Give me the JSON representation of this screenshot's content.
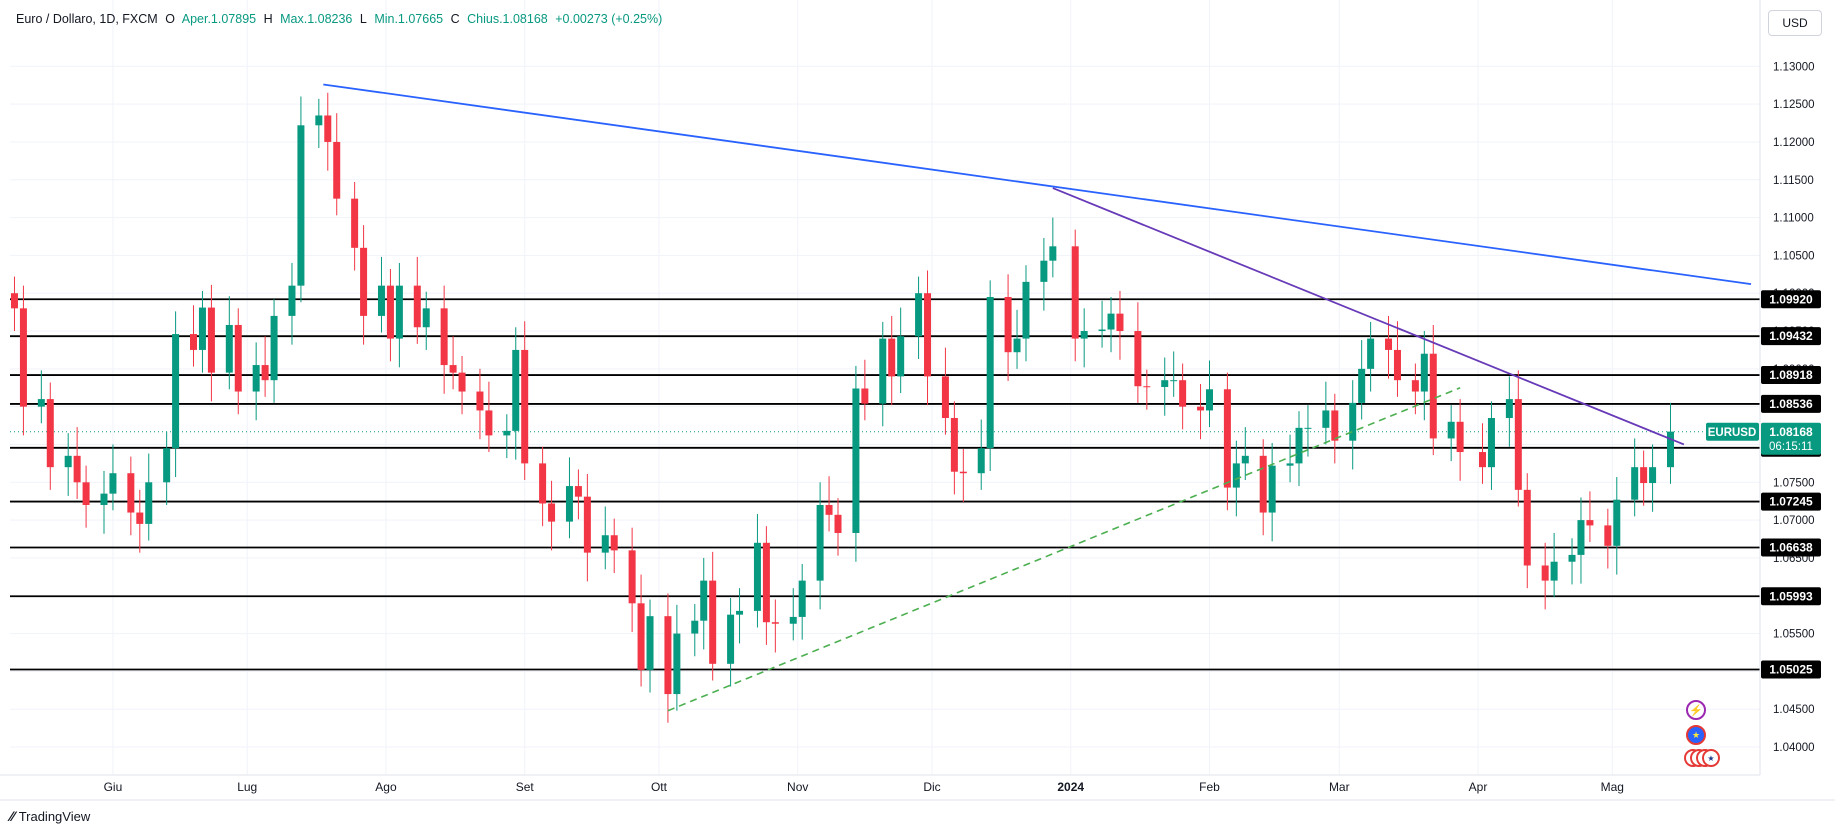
{
  "header": {
    "symbol": "Euro / Dollaro, 1D, FXCM",
    "open_label": "O",
    "open_value": "Aper.1.07895",
    "high_label": "H",
    "high_value": "Max.1.08236",
    "low_label": "L",
    "low_value": "Min.1.07665",
    "close_label": "C",
    "close_value": "Chius.1.08168",
    "change_value": "+0.00273 (+0.25%)"
  },
  "currency_button": "USD",
  "logo_text": "TradingView",
  "colors": {
    "up": "#089981",
    "down": "#f23645",
    "trend_blue": "#2962ff",
    "trend_purple": "#673ab7",
    "trend_green": "#4caf50",
    "level": "#000000"
  },
  "chart_data": {
    "type": "candlestick",
    "symbol": "EURUSD",
    "ylim": [
      1.0363,
      1.1348
    ],
    "y_ticks": [
      "1.04000",
      "1.04500",
      "1.05000",
      "1.05500",
      "1.06000",
      "1.06500",
      "1.07000",
      "1.07500",
      "1.08000",
      "1.08500",
      "1.09000",
      "1.09500",
      "1.10000",
      "1.10500",
      "1.11000",
      "1.11500",
      "1.12000",
      "1.12500",
      "1.13000"
    ],
    "x_labels": [
      "Giu",
      "Lug",
      "Ago",
      "Set",
      "Ott",
      "Nov",
      "Dic",
      "2024",
      "Feb",
      "Mar",
      "Apr",
      "Mag"
    ],
    "x_label_dates": [
      "2023-06-01",
      "2023-07-01",
      "2023-08-01",
      "2023-09-01",
      "2023-10-01",
      "2023-11-01",
      "2023-12-01",
      "2024-01-01",
      "2024-02-01",
      "2024-03-01",
      "2024-04-01",
      "2024-05-01"
    ],
    "x_range": [
      "2023-05-09",
      "2024-06-03"
    ],
    "horizontal_levels": [
      "1.09920",
      "1.09432",
      "1.08918",
      "1.08536",
      "1.07956",
      "1.07245",
      "1.06638",
      "1.05993",
      "1.05025"
    ],
    "last_price": {
      "symbol": "EURUSD",
      "value": "1.08168",
      "countdown": "06:15:11",
      "numeric": 1.08168
    },
    "trendlines": [
      {
        "style": "solid",
        "color": "blue",
        "points": [
          [
            "2023-07-18",
            1.1276
          ],
          [
            "2024-06-01",
            1.1012
          ]
        ]
      },
      {
        "style": "solid",
        "color": "purple",
        "points": [
          [
            "2023-12-28",
            1.1139
          ],
          [
            "2024-05-17",
            1.08
          ]
        ]
      },
      {
        "style": "dashed",
        "color": "green",
        "points": [
          [
            "2023-10-03",
            1.0448
          ],
          [
            "2024-03-28",
            1.0875
          ]
        ]
      }
    ],
    "closes": [
      [
        "2023-05-10",
        1.098
      ],
      [
        "2023-05-12",
        1.085
      ],
      [
        "2023-05-16",
        1.086
      ],
      [
        "2023-05-18",
        1.077
      ],
      [
        "2023-05-22",
        1.0785
      ],
      [
        "2023-05-24",
        1.075
      ],
      [
        "2023-05-26",
        1.072
      ],
      [
        "2023-05-30",
        1.0735
      ],
      [
        "2023-06-01",
        1.0762
      ],
      [
        "2023-06-05",
        1.071
      ],
      [
        "2023-06-07",
        1.0695
      ],
      [
        "2023-06-09",
        1.075
      ],
      [
        "2023-06-13",
        1.0795
      ],
      [
        "2023-06-15",
        1.0946
      ],
      [
        "2023-06-19",
        1.0925
      ],
      [
        "2023-06-21",
        1.0981
      ],
      [
        "2023-06-23",
        1.0895
      ],
      [
        "2023-06-27",
        1.0958
      ],
      [
        "2023-06-29",
        1.087
      ],
      [
        "2023-07-03",
        1.0905
      ],
      [
        "2023-07-05",
        1.0885
      ],
      [
        "2023-07-07",
        1.097
      ],
      [
        "2023-07-11",
        1.101
      ],
      [
        "2023-07-13",
        1.1222
      ],
      [
        "2023-07-17",
        1.1235
      ],
      [
        "2023-07-19",
        1.12
      ],
      [
        "2023-07-21",
        1.1125
      ],
      [
        "2023-07-25",
        1.106
      ],
      [
        "2023-07-27",
        1.097
      ],
      [
        "2023-07-31",
        1.101
      ],
      [
        "2023-08-02",
        1.094
      ],
      [
        "2023-08-04",
        1.101
      ],
      [
        "2023-08-08",
        1.0955
      ],
      [
        "2023-08-10",
        1.098
      ],
      [
        "2023-08-14",
        1.0905
      ],
      [
        "2023-08-16",
        1.0895
      ],
      [
        "2023-08-18",
        1.087
      ],
      [
        "2023-08-22",
        1.0845
      ],
      [
        "2023-08-24",
        1.0812
      ],
      [
        "2023-08-28",
        1.0818
      ],
      [
        "2023-08-30",
        1.0925
      ],
      [
        "2023-09-01",
        1.0775
      ],
      [
        "2023-09-05",
        1.0722
      ],
      [
        "2023-09-07",
        1.0698
      ],
      [
        "2023-09-11",
        1.0745
      ],
      [
        "2023-09-13",
        1.0731
      ],
      [
        "2023-09-15",
        1.0657
      ],
      [
        "2023-09-19",
        1.068
      ],
      [
        "2023-09-21",
        1.066
      ],
      [
        "2023-09-25",
        1.059
      ],
      [
        "2023-09-27",
        1.0502
      ],
      [
        "2023-09-29",
        1.0573
      ],
      [
        "2023-10-03",
        1.047
      ],
      [
        "2023-10-05",
        1.055
      ],
      [
        "2023-10-09",
        1.0567
      ],
      [
        "2023-10-11",
        1.062
      ],
      [
        "2023-10-13",
        1.051
      ],
      [
        "2023-10-17",
        1.0575
      ],
      [
        "2023-10-19",
        1.058
      ],
      [
        "2023-10-23",
        1.067
      ],
      [
        "2023-10-25",
        1.0565
      ],
      [
        "2023-10-27",
        1.0563
      ],
      [
        "2023-10-31",
        1.0572
      ],
      [
        "2023-11-02",
        1.062
      ],
      [
        "2023-11-06",
        1.072
      ],
      [
        "2023-11-08",
        1.0707
      ],
      [
        "2023-11-10",
        1.0683
      ],
      [
        "2023-11-14",
        1.0874
      ],
      [
        "2023-11-16",
        1.0854
      ],
      [
        "2023-11-20",
        1.094
      ],
      [
        "2023-11-22",
        1.089
      ],
      [
        "2023-11-24",
        1.0943
      ],
      [
        "2023-11-28",
        1.1
      ],
      [
        "2023-11-30",
        1.089
      ],
      [
        "2023-12-04",
        1.0835
      ],
      [
        "2023-12-06",
        1.0764
      ],
      [
        "2023-12-08",
        1.0762
      ],
      [
        "2023-12-12",
        1.0795
      ],
      [
        "2023-12-14",
        1.0995
      ],
      [
        "2023-12-18",
        1.0922
      ],
      [
        "2023-12-20",
        1.094
      ],
      [
        "2023-12-22",
        1.1015
      ],
      [
        "2023-12-26",
        1.1043
      ],
      [
        "2023-12-28",
        1.1062
      ],
      [
        "2024-01-02",
        1.094
      ],
      [
        "2024-01-04",
        1.095
      ],
      [
        "2024-01-08",
        1.0952
      ],
      [
        "2024-01-10",
        1.0973
      ],
      [
        "2024-01-12",
        1.095
      ],
      [
        "2024-01-16",
        1.0877
      ],
      [
        "2024-01-18",
        1.0876
      ],
      [
        "2024-01-22",
        1.0885
      ],
      [
        "2024-01-24",
        1.0885
      ],
      [
        "2024-01-26",
        1.085
      ],
      [
        "2024-01-30",
        1.0845
      ],
      [
        "2024-02-01",
        1.0873
      ],
      [
        "2024-02-05",
        1.0743
      ],
      [
        "2024-02-07",
        1.0775
      ],
      [
        "2024-02-09",
        1.0785
      ],
      [
        "2024-02-13",
        1.071
      ],
      [
        "2024-02-15",
        1.0772
      ],
      [
        "2024-02-19",
        1.0775
      ],
      [
        "2024-02-21",
        1.0822
      ],
      [
        "2024-02-23",
        1.0822
      ],
      [
        "2024-02-27",
        1.0845
      ],
      [
        "2024-02-29",
        1.0805
      ],
      [
        "2024-03-04",
        1.0855
      ],
      [
        "2024-03-06",
        1.09
      ],
      [
        "2024-03-08",
        1.094
      ],
      [
        "2024-03-12",
        1.0925
      ],
      [
        "2024-03-14",
        1.0885
      ],
      [
        "2024-03-18",
        1.087
      ],
      [
        "2024-03-20",
        1.092
      ],
      [
        "2024-03-22",
        1.0808
      ],
      [
        "2024-03-26",
        1.083
      ],
      [
        "2024-03-28",
        1.079
      ],
      [
        "2024-04-02",
        1.077
      ],
      [
        "2024-04-04",
        1.0835
      ],
      [
        "2024-04-08",
        1.086
      ],
      [
        "2024-04-10",
        1.074
      ],
      [
        "2024-04-12",
        1.064
      ],
      [
        "2024-04-16",
        1.062
      ],
      [
        "2024-04-18",
        1.0645
      ],
      [
        "2024-04-22",
        1.0654
      ],
      [
        "2024-04-24",
        1.07
      ],
      [
        "2024-04-26",
        1.0693
      ],
      [
        "2024-04-30",
        1.0666
      ],
      [
        "2024-05-02",
        1.0727
      ],
      [
        "2024-05-06",
        1.077
      ],
      [
        "2024-05-08",
        1.0749
      ],
      [
        "2024-05-10",
        1.077
      ],
      [
        "2024-05-14",
        1.0817
      ]
    ]
  }
}
